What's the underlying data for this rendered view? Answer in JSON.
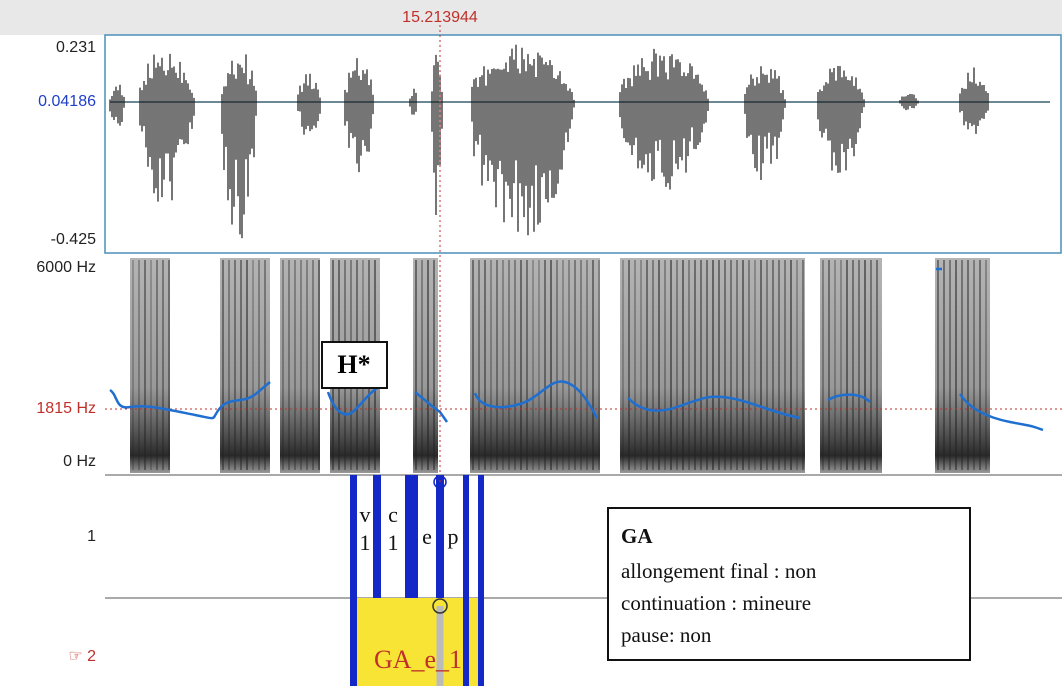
{
  "cursor_time": "15.213944",
  "waveform": {
    "max": "0.231",
    "cursor_value": "0.04186",
    "min": "-0.425"
  },
  "spectrogram": {
    "max": "6000 Hz",
    "cursor": "1815 Hz",
    "min": "0 Hz"
  },
  "annotation": "H*",
  "tiers": [
    {
      "label": "1",
      "intervals": [
        [
          "v",
          "1"
        ],
        [
          "c",
          "1"
        ],
        [
          "e"
        ],
        [
          "p"
        ]
      ]
    },
    {
      "label": "☞ 2",
      "intervals": [
        "GA_e_1"
      ]
    }
  ],
  "info": {
    "title": "GA",
    "lines": [
      "allongement final : non",
      "continuation : mineure",
      "pause: non"
    ]
  }
}
